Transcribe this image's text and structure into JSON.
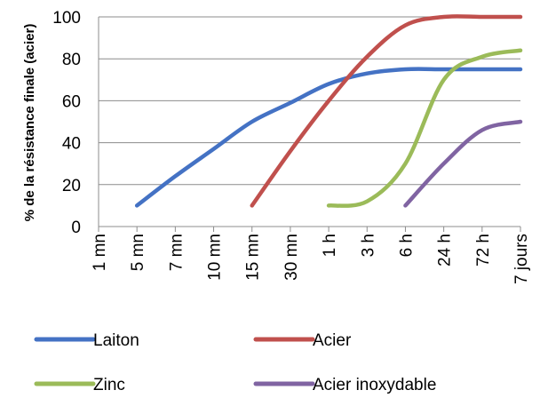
{
  "chart_data": {
    "type": "line",
    "title": "",
    "xlabel": "",
    "ylabel": "% de la résistance finale (acier)",
    "ylim": [
      0,
      100
    ],
    "yticks": [
      0,
      20,
      40,
      60,
      80,
      100
    ],
    "categories": [
      "1 mn",
      "5 mn",
      "7 mn",
      "10 mn",
      "15 mn",
      "30 mn",
      "1 h",
      "3 h",
      "6 h",
      "24 h",
      "72 h",
      "7 jours"
    ],
    "grid": true,
    "legend_position": "bottom",
    "series": [
      {
        "name": "Laiton",
        "color": "#4472C4",
        "points": [
          [
            1,
            10
          ],
          [
            2,
            24
          ],
          [
            3,
            37
          ],
          [
            4,
            50
          ],
          [
            5,
            59
          ],
          [
            6,
            68
          ],
          [
            7,
            73
          ],
          [
            8,
            75
          ],
          [
            9,
            75
          ],
          [
            10,
            75
          ],
          [
            11,
            75
          ]
        ]
      },
      {
        "name": "Acier",
        "color": "#C0504D",
        "points": [
          [
            4,
            10
          ],
          [
            5,
            36
          ],
          [
            6,
            60
          ],
          [
            7,
            81
          ],
          [
            8,
            96
          ],
          [
            9,
            100
          ],
          [
            10,
            100
          ],
          [
            11,
            100
          ]
        ]
      },
      {
        "name": "Zinc",
        "color": "#9BBB59",
        "points": [
          [
            6,
            10
          ],
          [
            7,
            12
          ],
          [
            8,
            30
          ],
          [
            9,
            70
          ],
          [
            10,
            81
          ],
          [
            11,
            84
          ]
        ]
      },
      {
        "name": "Acier inoxydable",
        "color": "#8064A2",
        "points": [
          [
            8,
            10
          ],
          [
            9,
            30
          ],
          [
            10,
            46
          ],
          [
            11,
            50
          ]
        ]
      }
    ]
  }
}
